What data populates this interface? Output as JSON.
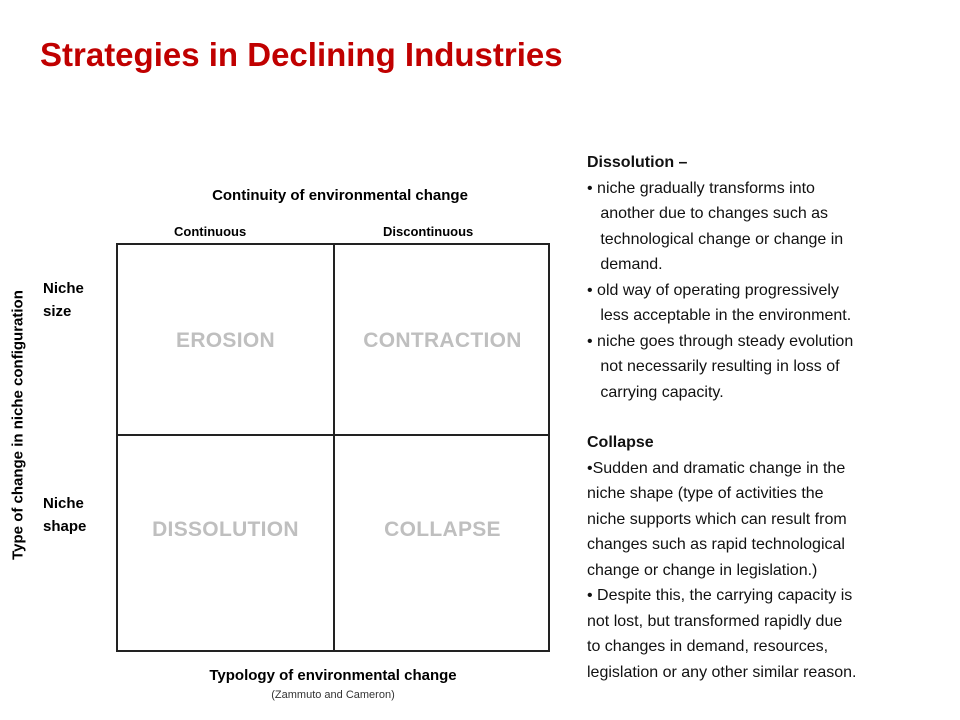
{
  "title": "Strategies in Declining Industries",
  "diagram": {
    "top_axis_title": "Continuity of environmental change",
    "column_labels": [
      "Continuous",
      "Discontinuous"
    ],
    "row_labels": [
      "Niche\nsize",
      "Niche\nshape"
    ],
    "left_axis_title": "Type of change in niche configuration",
    "cells": {
      "erosion": "EROSION",
      "contraction": "CONTRACTION",
      "dissolution": "DISSOLUTION",
      "collapse": "COLLAPSE"
    },
    "bottom_axis_title": "Typology of environmental change",
    "source": "(Zammuto and Cameron)"
  },
  "panel": {
    "dissolution_heading": "Dissolution –",
    "dissolution_bullets": [
      "• niche gradually transforms into\n   another due to changes such as\n   technological change or change in\n   demand.",
      "• old way of operating progressively\n   less acceptable in the environment.",
      "• niche goes through steady evolution\n   not necessarily resulting in loss of\n   carrying capacity."
    ],
    "collapse_heading": "Collapse",
    "collapse_bullets": [
      "•Sudden and dramatic change in the\nniche shape (type of activities the\nniche supports which can result from\nchanges such as rapid technological\nchange or change in legislation.)",
      "• Despite this, the carrying capacity is\nnot lost, but transformed rapidly due\nto changes in demand, resources,\nlegislation or any other similar reason."
    ]
  }
}
